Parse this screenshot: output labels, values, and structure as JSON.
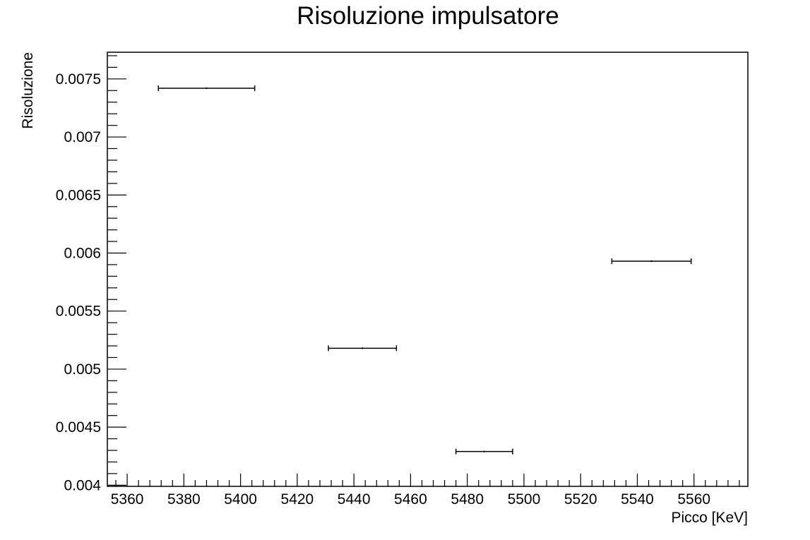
{
  "chart_data": {
    "type": "scatter",
    "title": "Risoluzione impulsatore",
    "xlabel": "Picco [KeV]",
    "ylabel": "Risoluzione",
    "xlim": [
      5353,
      5579
    ],
    "ylim": [
      0.00399,
      0.00773
    ],
    "x_ticks": [
      5360,
      5380,
      5400,
      5420,
      5440,
      5460,
      5480,
      5500,
      5520,
      5540,
      5560
    ],
    "x_tick_labels": [
      "5360",
      "5380",
      "5400",
      "5420",
      "5440",
      "5460",
      "5480",
      "5500",
      "5520",
      "5540",
      "5560"
    ],
    "y_ticks": [
      0.004,
      0.0045,
      0.005,
      0.0055,
      0.006,
      0.0065,
      0.007,
      0.0075
    ],
    "y_tick_labels": [
      "0.004",
      "0.0045",
      "0.005",
      "0.0055",
      "0.006",
      "0.0065",
      "0.007",
      "0.0075"
    ],
    "grid": false,
    "points": [
      {
        "x": 5388,
        "y": 0.00742,
        "xerr": 17
      },
      {
        "x": 5443,
        "y": 0.00518,
        "xerr": 12
      },
      {
        "x": 5486,
        "y": 0.00429,
        "xerr": 10
      },
      {
        "x": 5545,
        "y": 0.00593,
        "xerr": 14
      }
    ]
  }
}
